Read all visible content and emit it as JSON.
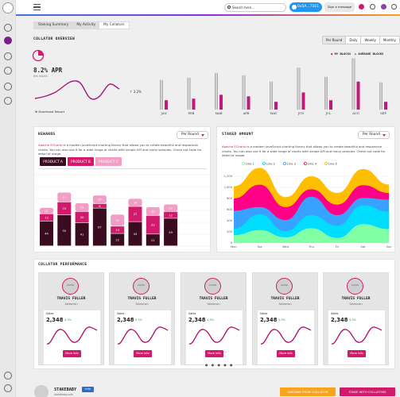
{
  "topbar": {
    "search_placeholder": "Search here...",
    "address": "0x5A...75E1",
    "sign": "Sign a message"
  },
  "tabs": [
    {
      "label": "Staking Summary",
      "active": false
    },
    {
      "label": "My Activity",
      "active": false
    },
    {
      "label": "My Collators",
      "active": true
    }
  ],
  "overview": {
    "title": "COLLATOR OVERVIEW",
    "ranges": [
      "Per Round",
      "Daily",
      "Weekly",
      "Monthly"
    ],
    "active_range": "Per Round",
    "apr": "8.2% APR",
    "apr_sub": "this month",
    "change": "3.2%",
    "download": "Download Report",
    "legend": [
      "MY BLOCKS",
      "AVERAGE BLOCKS"
    ],
    "chart_data": {
      "type": "bar",
      "categories": [
        "JAN",
        "FEB",
        "MAR",
        "APR",
        "MAY",
        "JUN",
        "JUL",
        "AUG",
        "SEP"
      ],
      "series": [
        {
          "name": "MY BLOCKS",
          "values": [
            12,
            14,
            19,
            17,
            10,
            22,
            12,
            36,
            10
          ]
        },
        {
          "name": "AVERAGE BLOCKS",
          "values": [
            38,
            41,
            47,
            44,
            36,
            54,
            42,
            66,
            35
          ]
        }
      ]
    }
  },
  "rewards": {
    "title": "REWARDS",
    "dropdown": "Per Round",
    "desc_brand": "Apache ECharts",
    "desc": " is a modern JavaScript charting library that allows you to create beautiful and responsive charts. You can also use it for a wide range of charts with simple API and many samples. Check out code for detail of usage.",
    "buttons": [
      "PRODUCT A",
      "PRODUCT B",
      "PRODUCT C"
    ],
    "chart_data": {
      "type": "bar",
      "categories": [
        "1",
        "2",
        "3",
        "4",
        "5",
        "6",
        "7",
        "8",
        "9"
      ],
      "series": [
        {
          "name": "PRODUCT A",
          "values": [
            44,
            55,
            41,
            67,
            22,
            43,
            21,
            49,
            null
          ]
        },
        {
          "name": "PRODUCT B",
          "values": [
            13,
            23,
            20,
            8,
            13,
            27,
            33,
            12,
            null
          ]
        },
        {
          "name": "PRODUCT C",
          "values": [
            11,
            17,
            15,
            15,
            21,
            14,
            15,
            13,
            null
          ]
        }
      ]
    }
  },
  "staked": {
    "title": "STAKED AMOUNT",
    "dropdown": "Per Round",
    "desc_brand": "Apache ECharts",
    "desc": " is a modern JavaScript charting library that allows you to create beautiful and responsive charts. You can also use it for a wide range of charts with simple API and many samples. Check out code for detail of usage.",
    "chart_data": {
      "type": "area",
      "x": [
        "Mon",
        "Tue",
        "Wed",
        "Thu",
        "Fri",
        "Sat",
        "Sun"
      ],
      "yticks": [
        "0",
        "200",
        "400",
        "600",
        "800",
        "1,000",
        "1,200"
      ],
      "ylim": [
        0,
        1200
      ],
      "series": [
        {
          "name": "Line 1",
          "values": [
            140,
            232,
            101,
            264,
            90,
            340,
            250
          ]
        },
        {
          "name": "Line 2",
          "values": [
            120,
            282,
            111,
            234,
            220,
            340,
            310
          ]
        },
        {
          "name": "Line 3",
          "values": [
            320,
            132,
            201,
            334,
            190,
            130,
            220
          ]
        },
        {
          "name": "Line 4",
          "values": [
            220,
            402,
            231,
            134,
            190,
            230,
            120
          ]
        },
        {
          "name": "Line 5",
          "values": [
            220,
            302,
            181,
            234,
            210,
            290,
            150
          ]
        }
      ],
      "colors": [
        "#80ffa5",
        "#00ddff",
        "#37a2ff",
        "#ff0087",
        "#ffbf00"
      ]
    }
  },
  "performance": {
    "title": "COLLATOR PERFORMANCE",
    "cards": [
      {
        "avatar": "AVATAR",
        "name": "TRAVIS FULLER",
        "role": "Salesman",
        "label": "Sales",
        "value": "2,348",
        "change": "4.3%",
        "button": "More Info"
      },
      {
        "avatar": "AVATAR",
        "name": "TRAVIS FULLER",
        "role": "Salesman",
        "label": "Sales",
        "value": "2,348",
        "change": "4.3%",
        "button": "More Info"
      },
      {
        "avatar": "AVATAR",
        "name": "TRAVIS FULLER",
        "role": "Salesman",
        "label": "Sales",
        "value": "2,348",
        "change": "4.3%",
        "button": "More Info"
      },
      {
        "avatar": "AVATAR",
        "name": "TRAVIS FULLER",
        "role": "Salesman",
        "label": "Sales",
        "value": "2,348",
        "change": "4.3%",
        "button": "More Info"
      },
      {
        "avatar": "AVATAR",
        "name": "TRAVIS FULLER",
        "role": "Salesman",
        "label": "Sales",
        "value": "2,348",
        "change": "4.3%",
        "button": "More Info"
      }
    ]
  },
  "footer": {
    "name": "STAKEBABY",
    "badge": "Info",
    "sub": "stakebaby.com",
    "unstake": "UNSTAKE FROM COLLATOR",
    "stake": "STAKE WITH COLLATORS"
  }
}
